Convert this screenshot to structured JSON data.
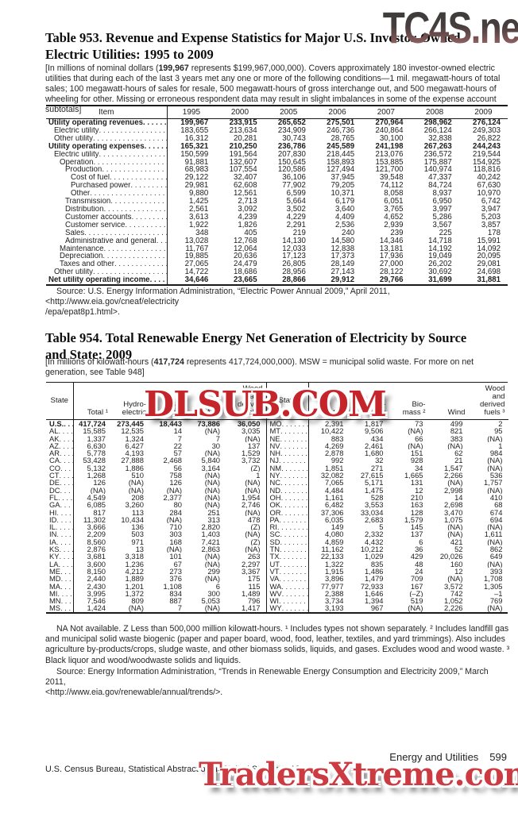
{
  "watermarks": {
    "top": "TC4S.net",
    "middle": "DLSUB.COM",
    "bottom": "TradersXtreme.com"
  },
  "colors": {
    "watermark_red": "#c5242b",
    "text": "#1e1e1e"
  },
  "table953": {
    "title_line1": "Table 953. Revenue and Expense Statistics for Major U.S. Investor-Owned",
    "title_line2": "Electric Utilities: 1995 to 2009",
    "note_pre": "[In millions of nominal dollars (",
    "note_bold": "199,967",
    "note_post": " represents $199,967,000,000). Covers approximately 180 investor-owned electric utilities that during each of the last 3 years met any one or more of the following conditions—1 mil. megawatt-hours of total sales; 100 megawatt-hours of sales for resale, 500 megawatt-hours of gross interchange out, and 500 megawatt-hours of wheeling for other. Missing or erroneous respondent data may result in slight imbalances in some of the expense account subtotals]",
    "columns": [
      "Item",
      "1995",
      "2000",
      "2005",
      "2006",
      "2007",
      "2008",
      "2009"
    ],
    "rows": [
      {
        "label": "Utility operating revenues",
        "indent": 0,
        "bold": true,
        "values": [
          "199,967",
          "233,915",
          "265,652",
          "275,501",
          "270,964",
          "298,962",
          "276,124"
        ]
      },
      {
        "label": "Electric utility",
        "indent": 1,
        "bold": false,
        "values": [
          "183,655",
          "213,634",
          "234,909",
          "246,736",
          "240,864",
          "266,124",
          "249,303"
        ]
      },
      {
        "label": "Other utility",
        "indent": 1,
        "bold": false,
        "values": [
          "16,312",
          "20,281",
          "30,743",
          "28,765",
          "30,100",
          "32,838",
          "26,822"
        ]
      },
      {
        "label": "Utility operating expenses",
        "indent": 0,
        "bold": true,
        "values": [
          "165,321",
          "210,250",
          "236,786",
          "245,589",
          "241,198",
          "267,263",
          "244,243"
        ]
      },
      {
        "label": "Electric utility",
        "indent": 1,
        "bold": false,
        "values": [
          "150,599",
          "191,564",
          "207,830",
          "218,445",
          "213,076",
          "236,572",
          "219,544"
        ]
      },
      {
        "label": "Operation",
        "indent": 2,
        "bold": false,
        "values": [
          "91,881",
          "132,607",
          "150,645",
          "158,893",
          "153,885",
          "175,887",
          "154,925"
        ]
      },
      {
        "label": "Production",
        "indent": 3,
        "bold": false,
        "values": [
          "68,983",
          "107,554",
          "120,586",
          "127,494",
          "121,700",
          "140,974",
          "118,816"
        ]
      },
      {
        "label": "Cost of fuel",
        "indent": 4,
        "bold": false,
        "values": [
          "29,122",
          "32,407",
          "36,106",
          "37,945",
          "39,548",
          "47,337",
          "40,242"
        ]
      },
      {
        "label": "Purchased power",
        "indent": 4,
        "bold": false,
        "values": [
          "29,981",
          "62,608",
          "77,902",
          "79,205",
          "74,112",
          "84,724",
          "67,630"
        ]
      },
      {
        "label": "Other",
        "indent": 4,
        "bold": false,
        "values": [
          "9,880",
          "12,561",
          "6,599",
          "10,371",
          "8,058",
          "8,937",
          "10,970"
        ]
      },
      {
        "label": "Transmission",
        "indent": 3,
        "bold": false,
        "values": [
          "1,425",
          "2,713",
          "5,664",
          "6,179",
          "6,051",
          "6,950",
          "6,742"
        ]
      },
      {
        "label": "Distribution",
        "indent": 3,
        "bold": false,
        "values": [
          "2,561",
          "3,092",
          "3,502",
          "3,640",
          "3,765",
          "3,997",
          "3,947"
        ]
      },
      {
        "label": "Customer accounts",
        "indent": 3,
        "bold": false,
        "values": [
          "3,613",
          "4,239",
          "4,229",
          "4,409",
          "4,652",
          "5,286",
          "5,203"
        ]
      },
      {
        "label": "Customer service",
        "indent": 3,
        "bold": false,
        "values": [
          "1,922",
          "1,826",
          "2,291",
          "2,536",
          "2,939",
          "3,567",
          "3,857"
        ]
      },
      {
        "label": "Sales",
        "indent": 3,
        "bold": false,
        "values": [
          "348",
          "405",
          "219",
          "240",
          "239",
          "225",
          "178"
        ]
      },
      {
        "label": "Administrative and general",
        "indent": 3,
        "bold": false,
        "values": [
          "13,028",
          "12,768",
          "14,130",
          "14,580",
          "14,346",
          "14,718",
          "15,991"
        ]
      },
      {
        "label": "Maintenance",
        "indent": 2,
        "bold": false,
        "values": [
          "11,767",
          "12,064",
          "12,033",
          "12,838",
          "13,181",
          "14,192",
          "14,092"
        ]
      },
      {
        "label": "Depreciation",
        "indent": 2,
        "bold": false,
        "values": [
          "19,885",
          "20,636",
          "17,123",
          "17,373",
          "17,936",
          "19,049",
          "20,095"
        ]
      },
      {
        "label": "Taxes and other",
        "indent": 2,
        "bold": false,
        "values": [
          "27,065",
          "24,479",
          "26,805",
          "28,149",
          "27,000",
          "26,202",
          "29,081"
        ]
      },
      {
        "label": "Other utility",
        "indent": 1,
        "bold": false,
        "values": [
          "14,722",
          "18,686",
          "28,956",
          "27,143",
          "28,122",
          "30,692",
          "24,698"
        ]
      },
      {
        "label": "Net utility operating income",
        "indent": 0,
        "bold": true,
        "values": [
          "34,646",
          "23,665",
          "28,866",
          "29,912",
          "29,766",
          "31,699",
          "31,881"
        ]
      }
    ],
    "source_line1": "Source: U.S. Energy Information Administration, “Electric Power Annual 2009,” April 2011, <http://www.eia.gov/cneaf/electricity",
    "source_line2": "/epa/epat8p1.html>."
  },
  "table954": {
    "title_line1": "Table 954. Total Renewable Energy Net Generation of Electricity by Source",
    "title_line2": "and State: 2009",
    "note_pre": "[In millions of kilowatt-hours (",
    "note_bold": "417,724",
    "note_post": " represents 417,724,000,000). MSW = municipal solid waste. For more on net generation, see Table 948]",
    "headers": {
      "state": "State",
      "total": "Total ¹",
      "hydro": "Hydro-\nelectric",
      "biomass": "Bio-\nmass ²",
      "wind": "Wind",
      "wood": "Wood\nand\nderived\nfuels ³"
    },
    "left_rows": [
      {
        "state": "U.S.",
        "bold": true,
        "values": [
          "417,724",
          "273,445",
          "18,443",
          "73,886",
          "36,050"
        ]
      },
      {
        "state": "AL",
        "bold": false,
        "values": [
          "15,585",
          "12,535",
          "14",
          "(NA)",
          "3,035"
        ]
      },
      {
        "state": "AK",
        "bold": false,
        "values": [
          "1,337",
          "1,324",
          "7",
          "7",
          "(NA)"
        ]
      },
      {
        "state": "AZ",
        "bold": false,
        "values": [
          "6,630",
          "6,427",
          "22",
          "30",
          "137"
        ]
      },
      {
        "state": "AR",
        "bold": false,
        "values": [
          "5,778",
          "4,193",
          "57",
          "(NA)",
          "1,529"
        ]
      },
      {
        "state": "CA",
        "bold": false,
        "values": [
          "53,428",
          "27,888",
          "2,468",
          "5,840",
          "3,732"
        ]
      },
      {
        "state": "CO",
        "bold": false,
        "values": [
          "5,132",
          "1,886",
          "56",
          "3,164",
          "(Z)"
        ]
      },
      {
        "state": "CT",
        "bold": false,
        "values": [
          "1,268",
          "510",
          "758",
          "(NA)",
          "1"
        ]
      },
      {
        "state": "DE",
        "bold": false,
        "values": [
          "126",
          "(NA)",
          "126",
          "(NA)",
          "(NA)"
        ]
      },
      {
        "state": "DC",
        "bold": false,
        "values": [
          "(NA)",
          "(NA)",
          "(NA)",
          "(NA)",
          "(NA)"
        ]
      },
      {
        "state": "FL",
        "bold": false,
        "values": [
          "4,549",
          "208",
          "2,377",
          "(NA)",
          "1,954"
        ]
      },
      {
        "state": "GA",
        "bold": false,
        "values": [
          "6,085",
          "3,260",
          "80",
          "(NA)",
          "2,746"
        ]
      },
      {
        "state": "HI",
        "bold": false,
        "values": [
          "817",
          "113",
          "284",
          "251",
          "(NA)"
        ]
      },
      {
        "state": "ID",
        "bold": false,
        "values": [
          "11,302",
          "10,434",
          "(NA)",
          "313",
          "478"
        ]
      },
      {
        "state": "IL",
        "bold": false,
        "values": [
          "3,666",
          "136",
          "710",
          "2,820",
          "(Z)"
        ]
      },
      {
        "state": "IN",
        "bold": false,
        "values": [
          "2,209",
          "503",
          "303",
          "1,403",
          "(NA)"
        ]
      },
      {
        "state": "IA",
        "bold": false,
        "values": [
          "8,560",
          "971",
          "168",
          "7,421",
          "(Z)"
        ]
      },
      {
        "state": "KS",
        "bold": false,
        "values": [
          "2,876",
          "13",
          "(NA)",
          "2,863",
          "(NA)"
        ]
      },
      {
        "state": "KY",
        "bold": false,
        "values": [
          "3,681",
          "3,318",
          "101",
          "(NA)",
          "263"
        ]
      },
      {
        "state": "LA",
        "bold": false,
        "values": [
          "3,600",
          "1,236",
          "67",
          "(NA)",
          "2,297"
        ]
      },
      {
        "state": "ME",
        "bold": false,
        "values": [
          "8,150",
          "4,212",
          "273",
          "299",
          "3,367"
        ]
      },
      {
        "state": "MD",
        "bold": false,
        "values": [
          "2,440",
          "1,889",
          "376",
          "(NA)",
          "175"
        ]
      },
      {
        "state": "MA",
        "bold": false,
        "values": [
          "2,430",
          "1,201",
          "1,108",
          "6",
          "115"
        ]
      },
      {
        "state": "MI",
        "bold": false,
        "values": [
          "3,995",
          "1,372",
          "834",
          "300",
          "1,489"
        ]
      },
      {
        "state": "MN",
        "bold": false,
        "values": [
          "7,546",
          "809",
          "887",
          "5,053",
          "796"
        ]
      },
      {
        "state": "MS",
        "bold": false,
        "values": [
          "1,424",
          "(NA)",
          "7",
          "(NA)",
          "1,417"
        ]
      }
    ],
    "right_rows": [
      {
        "state": "MO",
        "bold": false,
        "values": [
          "2,391",
          "1,817",
          "73",
          "499",
          "2"
        ]
      },
      {
        "state": "MT",
        "bold": false,
        "values": [
          "10,422",
          "9,506",
          "(NA)",
          "821",
          "95"
        ]
      },
      {
        "state": "NE",
        "bold": false,
        "values": [
          "883",
          "434",
          "66",
          "383",
          "(NA)"
        ]
      },
      {
        "state": "NV",
        "bold": false,
        "values": [
          "4,269",
          "2,461",
          "(NA)",
          "(NA)",
          "1"
        ]
      },
      {
        "state": "NH",
        "bold": false,
        "values": [
          "2,878",
          "1,680",
          "151",
          "62",
          "984"
        ]
      },
      {
        "state": "NJ",
        "bold": false,
        "values": [
          "992",
          "32",
          "928",
          "21",
          "(NA)"
        ]
      },
      {
        "state": "NM",
        "bold": false,
        "values": [
          "1,851",
          "271",
          "34",
          "1,547",
          "(NA)"
        ]
      },
      {
        "state": "NY",
        "bold": false,
        "values": [
          "32,082",
          "27,615",
          "1,665",
          "2,266",
          "536"
        ]
      },
      {
        "state": "NC",
        "bold": false,
        "values": [
          "7,065",
          "5,171",
          "131",
          "(NA)",
          "1,757"
        ]
      },
      {
        "state": "ND",
        "bold": false,
        "values": [
          "4,484",
          "1,475",
          "12",
          "2,998",
          "(NA)"
        ]
      },
      {
        "state": "OH",
        "bold": false,
        "values": [
          "1,161",
          "528",
          "210",
          "14",
          "410"
        ]
      },
      {
        "state": "OK",
        "bold": false,
        "values": [
          "6,482",
          "3,553",
          "163",
          "2,698",
          "68"
        ]
      },
      {
        "state": "OR",
        "bold": false,
        "values": [
          "37,306",
          "33,034",
          "128",
          "3,470",
          "674"
        ]
      },
      {
        "state": "PA",
        "bold": false,
        "values": [
          "6,035",
          "2,683",
          "1,579",
          "1,075",
          "694"
        ]
      },
      {
        "state": "RI",
        "bold": false,
        "values": [
          "149",
          "5",
          "145",
          "(NA)",
          "(NA)"
        ]
      },
      {
        "state": "SC",
        "bold": false,
        "values": [
          "4,080",
          "2,332",
          "137",
          "(NA)",
          "1,611"
        ]
      },
      {
        "state": "SD",
        "bold": false,
        "values": [
          "4,859",
          "4,432",
          "6",
          "421",
          "(NA)"
        ]
      },
      {
        "state": "TN",
        "bold": false,
        "values": [
          "11,162",
          "10,212",
          "36",
          "52",
          "862"
        ]
      },
      {
        "state": "TX",
        "bold": false,
        "values": [
          "22,133",
          "1,029",
          "429",
          "20,026",
          "649"
        ]
      },
      {
        "state": "UT",
        "bold": false,
        "values": [
          "1,322",
          "835",
          "48",
          "160",
          "(NA)"
        ]
      },
      {
        "state": "VT",
        "bold": false,
        "values": [
          "1,915",
          "1,486",
          "24",
          "12",
          "393"
        ]
      },
      {
        "state": "VA",
        "bold": false,
        "values": [
          "3,896",
          "1,479",
          "709",
          "(NA)",
          "1,708"
        ]
      },
      {
        "state": "WA",
        "bold": false,
        "values": [
          "77,977",
          "72,933",
          "167",
          "3,572",
          "1,305"
        ]
      },
      {
        "state": "WV",
        "bold": false,
        "values": [
          "2,388",
          "1,646",
          "(–Z)",
          "742",
          "–1"
        ]
      },
      {
        "state": "WI",
        "bold": false,
        "values": [
          "3,734",
          "1,394",
          "519",
          "1,052",
          "769"
        ]
      },
      {
        "state": "WY",
        "bold": false,
        "values": [
          "3,193",
          "967",
          "(NA)",
          "2,226",
          "(NA)"
        ]
      }
    ],
    "footnote": "NA Not available. Z Less than 500,000 million kilowatt-hours. ¹ Includes types not shown separately. ² Includes landfill gas and municipal solid waste biogenic (paper and paper board, wood, food, leather, textiles, and yard trimmings). Also includes agriculture by-products/crops, sludge waste, and other biomass solids, liquids, and gases. Excludes wood and wood waste. ³ Black liquor and wood/woodwaste solids and liquids.",
    "source_line1": "Source: Energy Information Administration, “Trends in Renewable Energy Consumption and Electricity 2009,” March 2011,",
    "source_line2": "<http://www.eia.gov/renewable/annual/trends/>."
  },
  "footer": {
    "section": "Energy and Utilities",
    "page": "599",
    "credit": "U.S. Census Bureau, Statistical Abstract of the United States: 2012"
  }
}
